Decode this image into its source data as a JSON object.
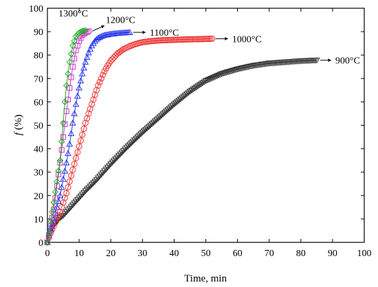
{
  "chart_data": {
    "type": "scatter",
    "xlabel": "Time, min",
    "ylabel_symbol": "f",
    "ylabel_unit": " (%)",
    "xlim": [
      0,
      100
    ],
    "ylim": [
      0,
      100
    ],
    "xticks": [
      "0",
      "10",
      "20",
      "30",
      "40",
      "50",
      "60",
      "70",
      "80",
      "90",
      "100"
    ],
    "yticks": [
      "0",
      "10",
      "20",
      "30",
      "40",
      "50",
      "60",
      "70",
      "80",
      "90",
      "100"
    ],
    "grid": false,
    "legend": "inline labels with arrows at line ends",
    "series": [
      {
        "name": "900°C",
        "color": "#333333",
        "marker": "triangle-down",
        "points": [
          [
            0,
            0
          ],
          [
            0.5,
            2
          ],
          [
            1,
            4
          ],
          [
            1.5,
            6
          ],
          [
            2,
            7.5
          ],
          [
            3,
            9
          ],
          [
            4,
            10.5
          ],
          [
            5,
            11.5
          ],
          [
            6,
            13
          ],
          [
            7,
            14.5
          ],
          [
            8,
            16
          ],
          [
            10,
            19
          ],
          [
            12,
            22
          ],
          [
            15,
            26
          ],
          [
            18,
            30.5
          ],
          [
            20,
            33.5
          ],
          [
            25,
            40.5
          ],
          [
            30,
            47
          ],
          [
            35,
            53
          ],
          [
            40,
            59
          ],
          [
            45,
            64.5
          ],
          [
            50,
            69
          ],
          [
            55,
            72
          ],
          [
            60,
            74
          ],
          [
            65,
            75.5
          ],
          [
            70,
            76.5
          ],
          [
            75,
            77
          ],
          [
            80,
            77.5
          ],
          [
            85,
            77.8
          ]
        ]
      },
      {
        "name": "1000°C",
        "color": "#ee3333",
        "marker": "circle",
        "points": [
          [
            0,
            0
          ],
          [
            0.5,
            2
          ],
          [
            1,
            4
          ],
          [
            2,
            7
          ],
          [
            3,
            10
          ],
          [
            4,
            13
          ],
          [
            5,
            17
          ],
          [
            6,
            21
          ],
          [
            7,
            26
          ],
          [
            8,
            31
          ],
          [
            9,
            36
          ],
          [
            10,
            41
          ],
          [
            11,
            46
          ],
          [
            12,
            51
          ],
          [
            13,
            55
          ],
          [
            14,
            59
          ],
          [
            15,
            63
          ],
          [
            16,
            67
          ],
          [
            17,
            70
          ],
          [
            18,
            73
          ],
          [
            19,
            75.5
          ],
          [
            20,
            77.5
          ],
          [
            22,
            80.5
          ],
          [
            24,
            82.5
          ],
          [
            26,
            83.8
          ],
          [
            28,
            84.8
          ],
          [
            30,
            85.5
          ],
          [
            33,
            86
          ],
          [
            36,
            86.3
          ],
          [
            40,
            86.5
          ],
          [
            44,
            86.7
          ],
          [
            48,
            86.8
          ],
          [
            52,
            87
          ]
        ]
      },
      {
        "name": "1100°C",
        "color": "#2233ee",
        "marker": "triangle-up",
        "points": [
          [
            0,
            0
          ],
          [
            0.5,
            3
          ],
          [
            1,
            6
          ],
          [
            2,
            10
          ],
          [
            3,
            15
          ],
          [
            4,
            20
          ],
          [
            5,
            27
          ],
          [
            6,
            34
          ],
          [
            7,
            42
          ],
          [
            8,
            51
          ],
          [
            9,
            59
          ],
          [
            10,
            66
          ],
          [
            11,
            72
          ],
          [
            12,
            77
          ],
          [
            13,
            81
          ],
          [
            14,
            84
          ],
          [
            15,
            86
          ],
          [
            16,
            87.3
          ],
          [
            17,
            88
          ],
          [
            18,
            88.5
          ],
          [
            20,
            89
          ],
          [
            22,
            89.3
          ],
          [
            24,
            89.5
          ],
          [
            26,
            89.7
          ]
        ]
      },
      {
        "name": "1200°C",
        "color": "#cc33cc",
        "marker": "square",
        "points": [
          [
            0,
            0
          ],
          [
            0.5,
            3
          ],
          [
            1,
            7
          ],
          [
            2,
            14
          ],
          [
            3,
            24
          ],
          [
            4,
            34
          ],
          [
            5,
            45
          ],
          [
            6,
            56
          ],
          [
            7,
            66
          ],
          [
            8,
            75
          ],
          [
            9,
            82
          ],
          [
            10,
            86
          ],
          [
            11,
            88.5
          ],
          [
            12,
            89.5
          ],
          [
            13,
            90.2
          ]
        ]
      },
      {
        "name": "1300°C",
        "color": "#22aa22",
        "marker": "diamond",
        "points": [
          [
            0,
            0
          ],
          [
            0.5,
            4
          ],
          [
            1,
            9
          ],
          [
            2,
            17
          ],
          [
            3,
            26
          ],
          [
            4,
            35
          ],
          [
            4.5,
            43
          ],
          [
            5,
            51
          ],
          [
            5.5,
            60
          ],
          [
            6,
            67
          ],
          [
            6.5,
            72
          ],
          [
            7,
            77
          ],
          [
            8,
            84
          ],
          [
            9,
            88
          ],
          [
            10,
            89.5
          ],
          [
            11,
            90.2
          ],
          [
            12,
            90.5
          ]
        ]
      }
    ]
  }
}
